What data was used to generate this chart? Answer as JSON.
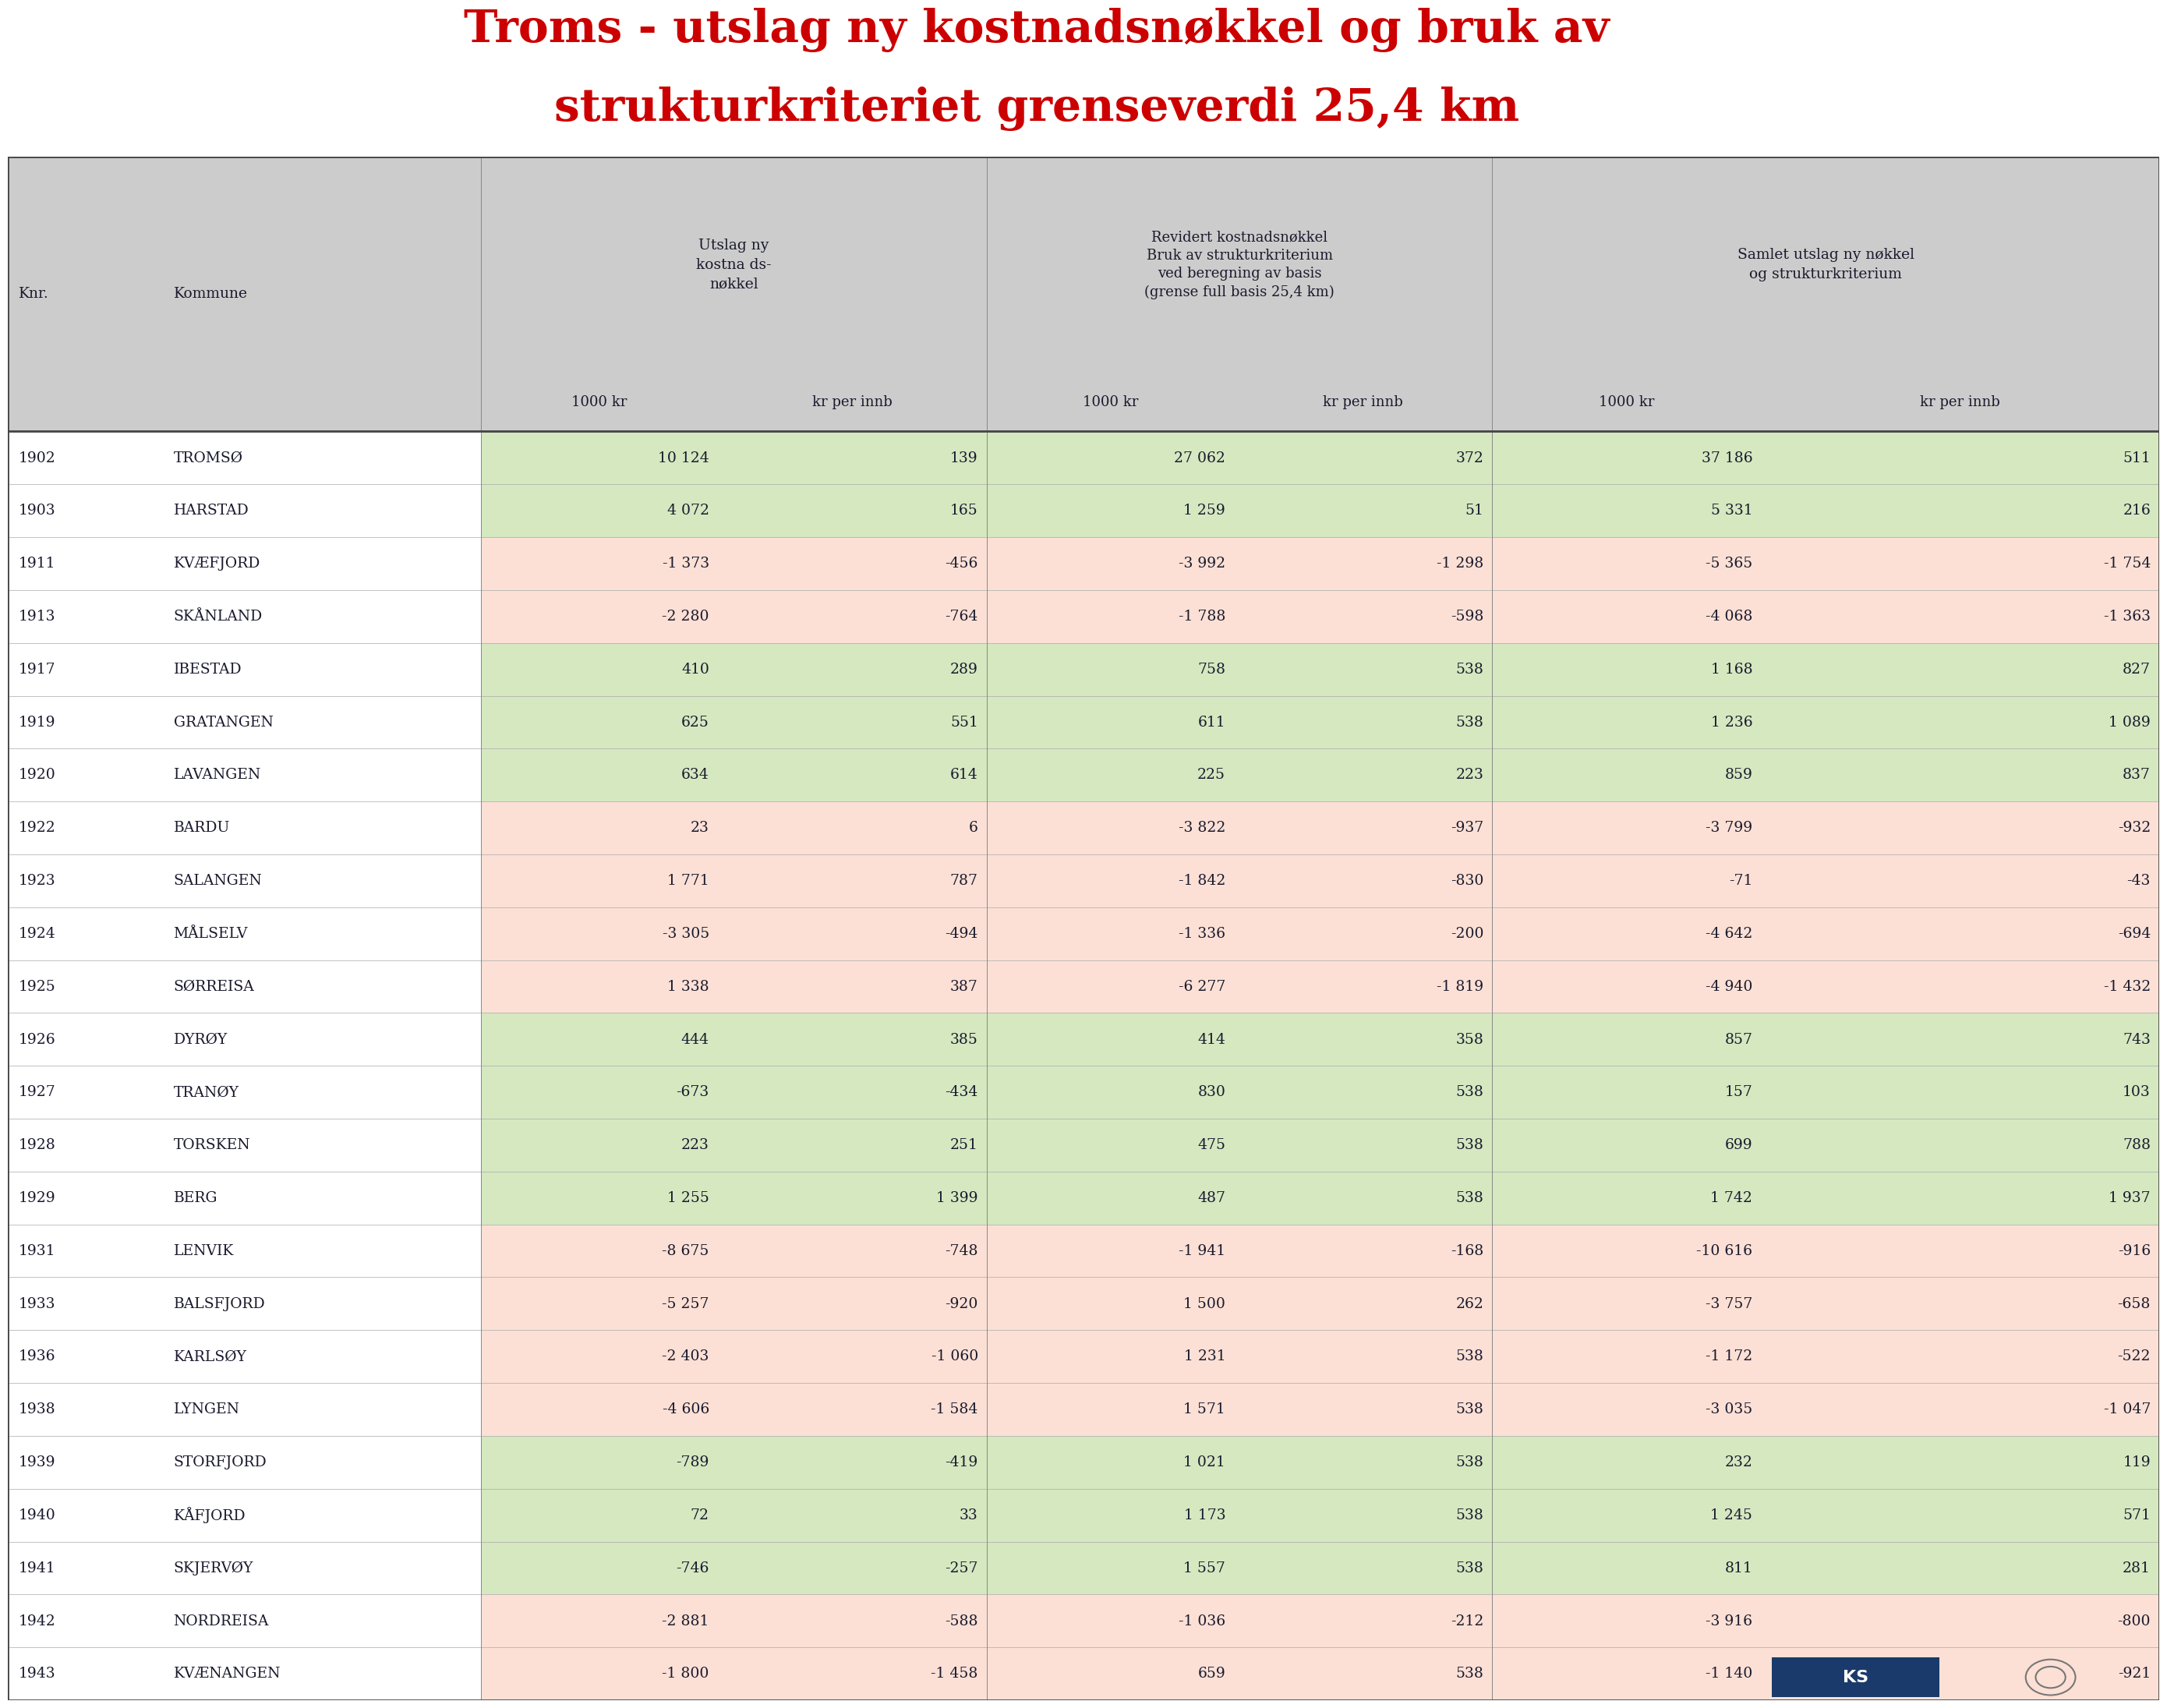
{
  "title_line1": "Troms - utslag ny kostnadsnøkkel og bruk av",
  "title_line2": "strukturkriteriet grenseverdi 25,4 km",
  "title_color": "#cc0000",
  "bg_color": "#ffffff",
  "header_bg": "#cccccc",
  "rows": [
    {
      "knr": "1902",
      "kommune": "TROMSØ",
      "v1": "10 124",
      "v2": "139",
      "v3": "27 062",
      "v4": "372",
      "v5": "37 186",
      "v6": "511",
      "row_bg": "#d5e8c0"
    },
    {
      "knr": "1903",
      "kommune": "HARSTAD",
      "v1": "4 072",
      "v2": "165",
      "v3": "1 259",
      "v4": "51",
      "v5": "5 331",
      "v6": "216",
      "row_bg": "#d5e8c0"
    },
    {
      "knr": "1911",
      "kommune": "KVÆFJORD",
      "v1": "-1 373",
      "v2": "-456",
      "v3": "-3 992",
      "v4": "-1 298",
      "v5": "-5 365",
      "v6": "-1 754",
      "row_bg": "#fce0d5"
    },
    {
      "knr": "1913",
      "kommune": "SKÅNLAND",
      "v1": "-2 280",
      "v2": "-764",
      "v3": "-1 788",
      "v4": "-598",
      "v5": "-4 068",
      "v6": "-1 363",
      "row_bg": "#fce0d5"
    },
    {
      "knr": "1917",
      "kommune": "IBESTAD",
      "v1": "410",
      "v2": "289",
      "v3": "758",
      "v4": "538",
      "v5": "1 168",
      "v6": "827",
      "row_bg": "#d5e8c0"
    },
    {
      "knr": "1919",
      "kommune": "GRATANGEN",
      "v1": "625",
      "v2": "551",
      "v3": "611",
      "v4": "538",
      "v5": "1 236",
      "v6": "1 089",
      "row_bg": "#d5e8c0"
    },
    {
      "knr": "1920",
      "kommune": "LAVANGEN",
      "v1": "634",
      "v2": "614",
      "v3": "225",
      "v4": "223",
      "v5": "859",
      "v6": "837",
      "row_bg": "#d5e8c0"
    },
    {
      "knr": "1922",
      "kommune": "BARDU",
      "v1": "23",
      "v2": "6",
      "v3": "-3 822",
      "v4": "-937",
      "v5": "-3 799",
      "v6": "-932",
      "row_bg": "#fce0d5"
    },
    {
      "knr": "1923",
      "kommune": "SALANGEN",
      "v1": "1 771",
      "v2": "787",
      "v3": "-1 842",
      "v4": "-830",
      "v5": "-71",
      "v6": "-43",
      "row_bg": "#fce0d5"
    },
    {
      "knr": "1924",
      "kommune": "MÅLSELV",
      "v1": "-3 305",
      "v2": "-494",
      "v3": "-1 336",
      "v4": "-200",
      "v5": "-4 642",
      "v6": "-694",
      "row_bg": "#fce0d5"
    },
    {
      "knr": "1925",
      "kommune": "SØRREISA",
      "v1": "1 338",
      "v2": "387",
      "v3": "-6 277",
      "v4": "-1 819",
      "v5": "-4 940",
      "v6": "-1 432",
      "row_bg": "#fce0d5"
    },
    {
      "knr": "1926",
      "kommune": "DYRØY",
      "v1": "444",
      "v2": "385",
      "v3": "414",
      "v4": "358",
      "v5": "857",
      "v6": "743",
      "row_bg": "#d5e8c0"
    },
    {
      "knr": "1927",
      "kommune": "TRANØY",
      "v1": "-673",
      "v2": "-434",
      "v3": "830",
      "v4": "538",
      "v5": "157",
      "v6": "103",
      "row_bg": "#d5e8c0"
    },
    {
      "knr": "1928",
      "kommune": "TORSKEN",
      "v1": "223",
      "v2": "251",
      "v3": "475",
      "v4": "538",
      "v5": "699",
      "v6": "788",
      "row_bg": "#d5e8c0"
    },
    {
      "knr": "1929",
      "kommune": "BERG",
      "v1": "1 255",
      "v2": "1 399",
      "v3": "487",
      "v4": "538",
      "v5": "1 742",
      "v6": "1 937",
      "row_bg": "#d5e8c0"
    },
    {
      "knr": "1931",
      "kommune": "LENVIK",
      "v1": "-8 675",
      "v2": "-748",
      "v3": "-1 941",
      "v4": "-168",
      "v5": "-10 616",
      "v6": "-916",
      "row_bg": "#fce0d5"
    },
    {
      "knr": "1933",
      "kommune": "BALSFJORD",
      "v1": "-5 257",
      "v2": "-920",
      "v3": "1 500",
      "v4": "262",
      "v5": "-3 757",
      "v6": "-658",
      "row_bg": "#fce0d5"
    },
    {
      "knr": "1936",
      "kommune": "KARLSØY",
      "v1": "-2 403",
      "v2": "-1 060",
      "v3": "1 231",
      "v4": "538",
      "v5": "-1 172",
      "v6": "-522",
      "row_bg": "#fce0d5"
    },
    {
      "knr": "1938",
      "kommune": "LYNGEN",
      "v1": "-4 606",
      "v2": "-1 584",
      "v3": "1 571",
      "v4": "538",
      "v5": "-3 035",
      "v6": "-1 047",
      "row_bg": "#fce0d5"
    },
    {
      "knr": "1939",
      "kommune": "STORFJORD",
      "v1": "-789",
      "v2": "-419",
      "v3": "1 021",
      "v4": "538",
      "v5": "232",
      "v6": "119",
      "row_bg": "#d5e8c0"
    },
    {
      "knr": "1940",
      "kommune": "KÅFJORD",
      "v1": "72",
      "v2": "33",
      "v3": "1 173",
      "v4": "538",
      "v5": "1 245",
      "v6": "571",
      "row_bg": "#d5e8c0"
    },
    {
      "knr": "1941",
      "kommune": "SKJERVØY",
      "v1": "-746",
      "v2": "-257",
      "v3": "1 557",
      "v4": "538",
      "v5": "811",
      "v6": "281",
      "row_bg": "#d5e8c0"
    },
    {
      "knr": "1942",
      "kommune": "NORDREISA",
      "v1": "-2 881",
      "v2": "-588",
      "v3": "-1 036",
      "v4": "-212",
      "v5": "-3 916",
      "v6": "-800",
      "row_bg": "#fce0d5"
    },
    {
      "knr": "1943",
      "kommune": "KVÆNANGEN",
      "v1": "-1 800",
      "v2": "-1 458",
      "v3": "659",
      "v4": "538",
      "v5": "-1 140",
      "v6": "-921",
      "row_bg": "#fce0d5"
    }
  ]
}
